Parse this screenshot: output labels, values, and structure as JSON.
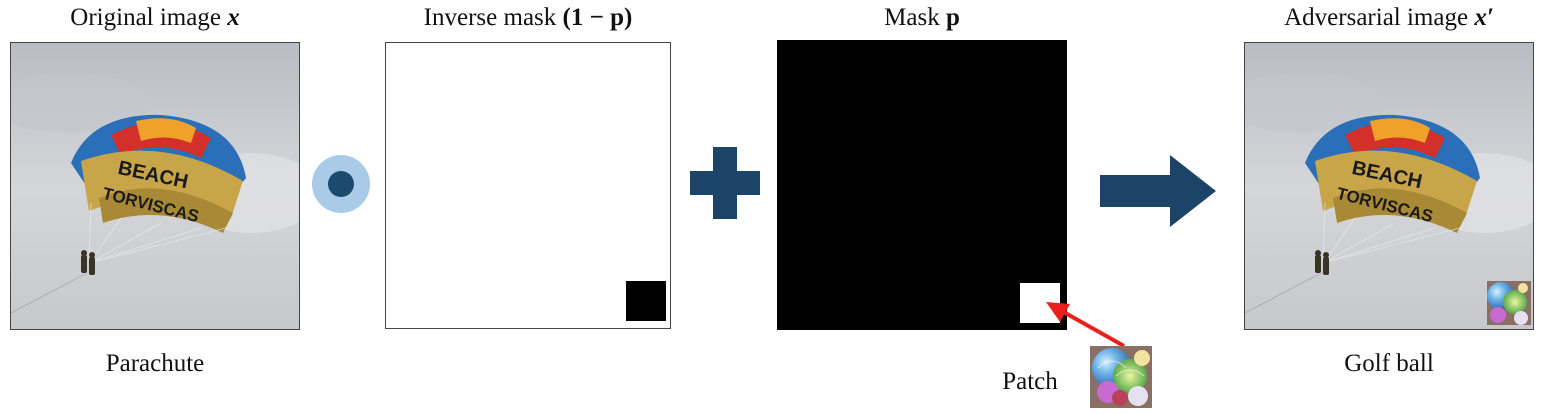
{
  "panels": {
    "original": {
      "title_prefix": "Original image ",
      "title_symbol": "x",
      "caption": "Parachute",
      "parachute_text": [
        "BEACH",
        "TORVISCAS"
      ]
    },
    "inverse_mask": {
      "title_prefix": "Inverse mask ",
      "title_symbol": "(1 − p)"
    },
    "mask": {
      "title_prefix": "Mask ",
      "title_symbol": "p",
      "patch_label": "Patch"
    },
    "adversarial": {
      "title_prefix": "Adversarial image ",
      "title_symbol": "x′",
      "caption": "Golf ball",
      "parachute_text": [
        "BEACH",
        "TORVISCAS"
      ]
    }
  },
  "operators": {
    "hadamard": {
      "outer_color": "#a9cbe8",
      "inner_color": "#1c4a6e"
    },
    "plus": {
      "color": "#1b4468"
    },
    "arrow": {
      "color": "#1b4468"
    },
    "patch_pointer": {
      "color": "#e8211c"
    }
  }
}
